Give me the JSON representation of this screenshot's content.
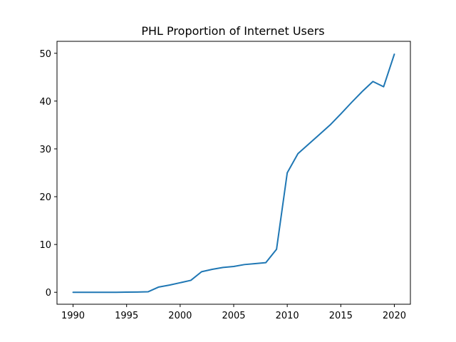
{
  "chart_data": {
    "type": "line",
    "title": "PHL Proportion of Internet Users",
    "xlabel": "",
    "ylabel": "",
    "xlim": [
      1988.5,
      2021.5
    ],
    "ylim": [
      -2.5,
      52.5
    ],
    "xticks": [
      1990,
      1995,
      2000,
      2005,
      2010,
      2015,
      2020
    ],
    "yticks": [
      0,
      10,
      20,
      30,
      40,
      50
    ],
    "grid": false,
    "series": [
      {
        "color": "#1f77b4",
        "x": [
          1990,
          1991,
          1992,
          1993,
          1994,
          1995,
          1996,
          1997,
          1998,
          1999,
          2000,
          2001,
          2002,
          2003,
          2004,
          2005,
          2006,
          2007,
          2008,
          2009,
          2010,
          2011,
          2012,
          2013,
          2014,
          2015,
          2016,
          2017,
          2018,
          2019,
          2020
        ],
        "y": [
          0,
          0,
          0,
          0,
          0,
          0.03,
          0.06,
          0.1,
          1.1,
          1.5,
          2.0,
          2.5,
          4.3,
          4.8,
          5.2,
          5.4,
          5.8,
          6.0,
          6.2,
          9.0,
          25.0,
          29.0,
          31.0,
          33.0,
          35.0,
          37.3,
          39.7,
          42.0,
          44.1,
          43.0,
          49.8
        ]
      }
    ]
  }
}
